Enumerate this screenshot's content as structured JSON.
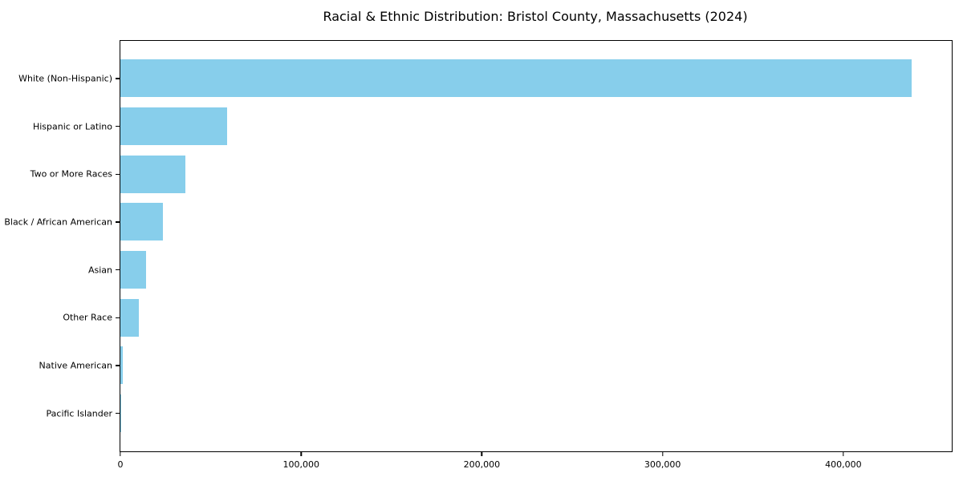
{
  "figure": {
    "background": "#ffffff"
  },
  "chart_data": {
    "type": "bar",
    "orientation": "horizontal",
    "title": "Racial & Ethnic Distribution: Bristol County, Massachusetts (2024)",
    "categories": [
      "White (Non-Hispanic)",
      "Hispanic or Latino",
      "Two or More Races",
      "Black / African American",
      "Asian",
      "Other Race",
      "Native American",
      "Pacific Islander"
    ],
    "values": [
      438000,
      59000,
      36000,
      23500,
      14000,
      10000,
      1200,
      200
    ],
    "xlabel": "",
    "ylabel": "",
    "xlim": [
      0,
      460000
    ],
    "xticks": [
      0,
      100000,
      200000,
      300000,
      400000
    ],
    "xtick_labels": [
      "0",
      "100,000",
      "200,000",
      "300,000",
      "400,000"
    ],
    "grid": false,
    "legend": null,
    "bar_color": "#87CEEB",
    "axis_color": "#000000",
    "text_color": "#000000"
  }
}
